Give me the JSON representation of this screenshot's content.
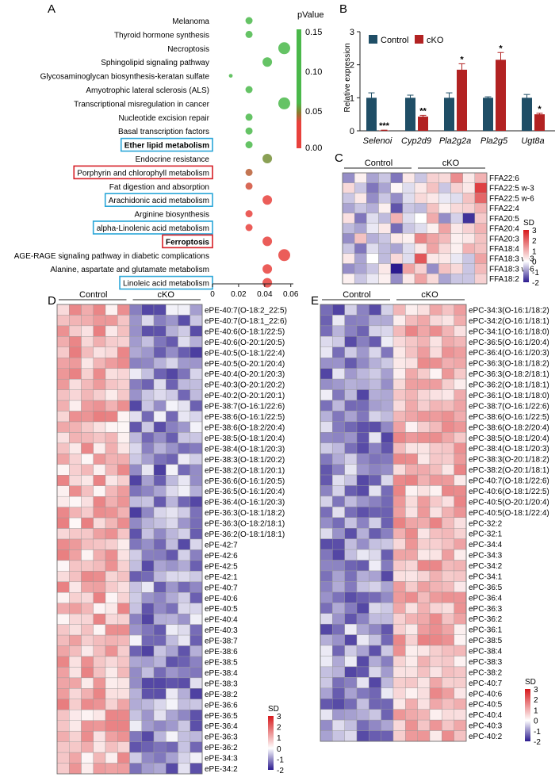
{
  "panels": [
    {
      "letter": "A"
    },
    {
      "letter": "B"
    },
    {
      "letter": "C"
    },
    {
      "letter": "D"
    },
    {
      "letter": "E"
    }
  ],
  "colors": {
    "heat_high": "#d7191c",
    "heat_mid": "#ffffff",
    "heat_low": "#2b1b8f",
    "control": "#1f4e66",
    "cko": "#b22222",
    "pval_high": "#4ab84a",
    "pval_mid": "#8a7a2e",
    "pval_low": "#e8413c",
    "box_blue": "#2aa6d8",
    "box_red": "#d61f26"
  },
  "chart_data": [
    {
      "panel": "A",
      "type": "scatter",
      "xlabel": "",
      "ylabel": "",
      "xlim": [
        0,
        0.062
      ],
      "xticks": [
        "0",
        "0.02",
        "0.04",
        "0.06"
      ],
      "legend": {
        "title": "pValue",
        "ticks": [
          "0.15",
          "0.10",
          "0.05",
          "0.00"
        ],
        "range": [
          0,
          0.15
        ],
        "position": "top-right"
      },
      "terms": [
        {
          "name": "Melanoma",
          "ratio": 0.028,
          "p": 0.14,
          "size": 1,
          "box": "none",
          "bold": false
        },
        {
          "name": "Thyroid hormone synthesis",
          "ratio": 0.028,
          "p": 0.14,
          "size": 1,
          "box": "none",
          "bold": false
        },
        {
          "name": "Necroptosis",
          "ratio": 0.055,
          "p": 0.13,
          "size": 2,
          "box": "none",
          "bold": false
        },
        {
          "name": "Sphingolipid signaling pathway",
          "ratio": 0.042,
          "p": 0.12,
          "size": 1.5,
          "box": "none",
          "bold": false
        },
        {
          "name": "Glycosaminoglycan biosynthesis-keratan sulfate",
          "ratio": 0.014,
          "p": 0.11,
          "size": 0.3,
          "box": "none",
          "bold": false
        },
        {
          "name": "Amyotrophic lateral sclerosis (ALS)",
          "ratio": 0.028,
          "p": 0.1,
          "size": 1,
          "box": "none",
          "bold": false
        },
        {
          "name": "Transcriptional misregulation in cancer",
          "ratio": 0.055,
          "p": 0.1,
          "size": 2,
          "box": "none",
          "bold": false
        },
        {
          "name": "Nucleotide excision repair",
          "ratio": 0.028,
          "p": 0.09,
          "size": 1,
          "box": "none",
          "bold": false
        },
        {
          "name": "Basal transcription factors",
          "ratio": 0.028,
          "p": 0.09,
          "size": 1,
          "box": "none",
          "bold": false
        },
        {
          "name": "Ether lipid metabolism",
          "ratio": 0.028,
          "p": 0.09,
          "size": 1,
          "box": "blue",
          "bold": true
        },
        {
          "name": "Endocrine resistance",
          "ratio": 0.042,
          "p": 0.07,
          "size": 1.5,
          "box": "none",
          "bold": false
        },
        {
          "name": "Porphyrin and chlorophyll metabolism",
          "ratio": 0.028,
          "p": 0.05,
          "size": 1,
          "box": "red",
          "bold": false
        },
        {
          "name": "Fat digestion and absorption",
          "ratio": 0.028,
          "p": 0.045,
          "size": 1,
          "box": "none",
          "bold": false
        },
        {
          "name": "Arachidonic acid metabolism",
          "ratio": 0.042,
          "p": 0.03,
          "size": 1.5,
          "box": "blue",
          "bold": false
        },
        {
          "name": "Arginine biosynthesis",
          "ratio": 0.028,
          "p": 0.02,
          "size": 1,
          "box": "none",
          "bold": false
        },
        {
          "name": "alpha-Linolenic acid metabolism",
          "ratio": 0.028,
          "p": 0.02,
          "size": 1,
          "box": "blue",
          "bold": false
        },
        {
          "name": "Ferroptosis",
          "ratio": 0.042,
          "p": 0.015,
          "size": 1.5,
          "box": "red",
          "bold": true
        },
        {
          "name": "AGE-RAGE signaling pathway in diabetic complications",
          "ratio": 0.055,
          "p": 0.01,
          "size": 2,
          "box": "none",
          "bold": false
        },
        {
          "name": "Alanine, aspartate and glutamate metabolism",
          "ratio": 0.042,
          "p": 0.008,
          "size": 1.5,
          "box": "none",
          "bold": false
        },
        {
          "name": "Linoleic acid metabolism",
          "ratio": 0.042,
          "p": 0.005,
          "size": 1.5,
          "box": "blue",
          "bold": false
        }
      ]
    },
    {
      "panel": "B",
      "type": "bar",
      "ylabel": "Relative expression",
      "ylim": [
        0,
        3
      ],
      "yticks": [
        "0",
        "1",
        "2",
        "3"
      ],
      "legend": [
        "Control",
        "cKO"
      ],
      "categories": [
        "Selenoi",
        "Cyp2d9",
        "Pla2g2a",
        "Pla2g5",
        "Ugt8a"
      ],
      "series": [
        {
          "name": "Control",
          "values": [
            1.0,
            1.0,
            1.0,
            1.0,
            1.0
          ],
          "errors": [
            0.15,
            0.08,
            0.15,
            0.03,
            0.1
          ]
        },
        {
          "name": "cKO",
          "values": [
            0.01,
            0.43,
            1.85,
            2.15,
            0.5
          ],
          "errors": [
            0.01,
            0.04,
            0.18,
            0.22,
            0.03
          ]
        }
      ],
      "significance": [
        "***",
        "**",
        "*",
        "*",
        "*"
      ]
    },
    {
      "panel": "C",
      "type": "heatmap",
      "groups": [
        "Control",
        "cKO"
      ],
      "cols_per_group": 6,
      "rows": [
        "FFA22:6",
        "FFA22:5 w-3",
        "FFA22:5 w-6",
        "FFA22:4",
        "FFA20:5",
        "FFA20:4",
        "FFA20:3",
        "FFA18:4",
        "FFA18:3 w-3",
        "FFA18:3 w-6",
        "FFA18:2"
      ],
      "scale": {
        "title": "SD",
        "ticks": [
          "3",
          "2",
          "1",
          "0",
          "-1",
          "-2"
        ],
        "range": [
          -2,
          3
        ]
      },
      "values": [
        [
          -1.0,
          0.2,
          -0.8,
          -0.5,
          -1.2,
          0.3,
          -0.5,
          0.6,
          0.5,
          1.5,
          0.3,
          1.0
        ],
        [
          0.5,
          -0.5,
          -1.2,
          -0.8,
          0.1,
          -0.3,
          0.3,
          0.8,
          -0.5,
          0.6,
          0.3,
          2.5
        ],
        [
          -0.5,
          0.3,
          -1.0,
          -0.5,
          -1.0,
          -0.3,
          0.5,
          0.3,
          -0.2,
          -0.3,
          0.8,
          2.0
        ],
        [
          -0.8,
          -0.5,
          -0.7,
          0.2,
          -1.5,
          -0.5,
          -0.6,
          0.8,
          0.2,
          0.5,
          0.6,
          1.0
        ],
        [
          0.4,
          -1.2,
          -0.3,
          -0.6,
          1.0,
          -0.3,
          0.0,
          1.1,
          -1.0,
          -0.4,
          -1.8,
          0.7
        ],
        [
          -0.6,
          -0.8,
          -0.2,
          0.3,
          -1.3,
          -0.5,
          -0.3,
          0.2,
          1.2,
          0.3,
          0.6,
          1.0
        ],
        [
          -1.0,
          0.8,
          -0.7,
          -0.5,
          0.3,
          0.2,
          1.6,
          1.2,
          0.9,
          0.2,
          0.3,
          0.8
        ],
        [
          -0.5,
          -1.2,
          -0.3,
          -0.6,
          -0.8,
          -0.3,
          0.3,
          1.2,
          0.5,
          0.2,
          1.0,
          0.8
        ],
        [
          0.3,
          -0.8,
          0.0,
          -0.6,
          0.5,
          -0.3,
          2.2,
          0.3,
          0.3,
          -0.2,
          -0.5,
          1.2
        ],
        [
          -1.0,
          -0.8,
          -0.5,
          0.3,
          -2.0,
          1.2,
          0.6,
          -1.0,
          0.8,
          0.5,
          -0.5,
          0.9
        ],
        [
          0.2,
          -0.5,
          -0.2,
          0.2,
          -1.0,
          0.3,
          1.2,
          0.5,
          -0.8,
          -0.5,
          -0.5,
          0.6
        ]
      ]
    },
    {
      "panel": "D",
      "type": "heatmap",
      "groups": [
        "Control",
        "cKO"
      ],
      "cols_per_group": 6,
      "rows": [
        "ePE-40:7(O-18:2_22:5)",
        "ePE-40:7(O-18:1_22:6)",
        "ePE-40:6(O-18:1/22:5)",
        "ePE-40:6(O-20:1/20:5)",
        "ePE-40:5(O-18:1/22:4)",
        "ePE-40:5(O-20:1/20:4)",
        "ePE-40:4(O-20:1/20:3)",
        "ePE-40:3(O-20:1/20:2)",
        "ePE-40:2(O-20:1/20:1)",
        "ePE-38:7(O-16:1/22:6)",
        "ePE-38:6(O-16:1/22:5)",
        "ePE-38:6(O-18:2/20:4)",
        "ePE-38:5(O-18:1/20:4)",
        "ePE-38:4(O-18:1/20:3)",
        "ePE-38:3(O-18:1/20:2)",
        "ePE-38:2(O-18:1/20:1)",
        "ePE-36:6(O-16:1/20:5)",
        "ePE-36:5(O-16:1/20:4)",
        "ePE-36:4(O-16:1/20:3)",
        "ePE-36:3(O-18:1/18:2)",
        "ePE-36:3(O-18:2/18:1)",
        "ePE-36:2(O-18:1/18:1)",
        "ePE-42:7",
        "ePE-42:6",
        "ePE-42:5",
        "ePE-42:1",
        "ePE-40:7",
        "ePE-40:6",
        "ePE-40:5",
        "ePE-40:4",
        "ePE-40:3",
        "ePE-38:7",
        "ePE-38:6",
        "ePE-38:5",
        "ePE-38:4",
        "ePE-38:3",
        "ePE-38:2",
        "ePE-36:6",
        "ePE-36:5",
        "ePE-36:4",
        "ePE-36:3",
        "ePE-36:2",
        "ePE-34:3",
        "ePE-34:2"
      ],
      "scale": {
        "title": "SD",
        "ticks": [
          "3",
          "2",
          "1",
          "0",
          "-1",
          "-2"
        ],
        "range": [
          -2,
          3
        ]
      }
    },
    {
      "panel": "E",
      "type": "heatmap",
      "groups": [
        "Control",
        "cKO"
      ],
      "cols_per_group": 6,
      "rows": [
        "ePC-34:3(O-16:1/18:2)",
        "ePC-34:2(O-16:1/18:1)",
        "ePC-34:1(O-16:1/18:0)",
        "ePC-36:5(O-16:1/20:4)",
        "ePC-36:4(O-16:1/20:3)",
        "ePC-36:3(O-18:1/18:2)",
        "ePC-36:3(O-18:2/18:1)",
        "ePC-36:2(O-18:1/18:1)",
        "ePC-36:1(O-18:1/18:0)",
        "ePC-38:7(O-16:1/22:6)",
        "ePC-38:6(O-16:1/22:5)",
        "ePC-38:6(O-18:2/20:4)",
        "ePC-38:5(O-18:1/20:4)",
        "ePC-38:4(O-18:1/20:3)",
        "ePC-38:3(O-20:1/18:2)",
        "ePC-38:2(O-20:1/18:1)",
        "ePC-40:7(O-18:1/22:6)",
        "ePC-40:6(O-18:1/22:5)",
        "ePC-40:5(O-20:1/20:4)",
        "ePC-40:5(O-18:1/22:4)",
        "ePC-32:2",
        "ePC-32:1",
        "ePC-34:4",
        "ePC-34:3",
        "ePC-34:2",
        "ePC-34:1",
        "ePC-36:5",
        "ePC-36:4",
        "ePC-36:3",
        "ePC-36:2",
        "ePC-36:1",
        "ePC-38:5",
        "ePC-38:4",
        "ePC-38:3",
        "ePC-38:2",
        "ePC-40:7",
        "ePC-40:6",
        "ePC-40:5",
        "ePC-40:4",
        "ePC-40:3",
        "ePC-40:2"
      ],
      "scale": {
        "title": "SD",
        "ticks": [
          "3",
          "2",
          "1",
          "0",
          "-1",
          "-2"
        ],
        "range": [
          -2,
          3
        ]
      }
    }
  ]
}
